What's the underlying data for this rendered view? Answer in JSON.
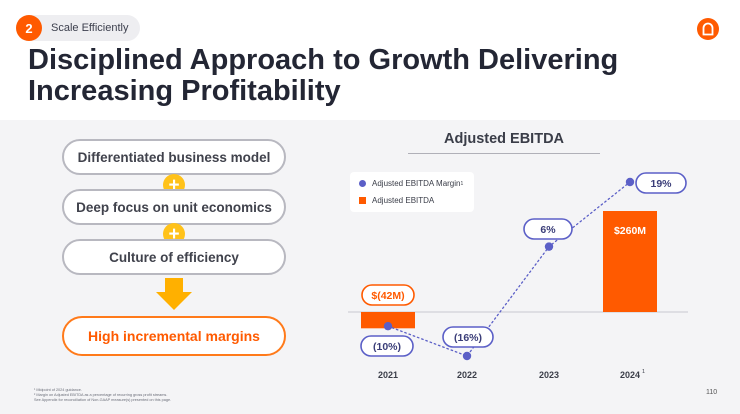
{
  "header": {
    "section_number": "2",
    "section_label": "Scale Efficiently",
    "title": "Disciplined Approach to Growth Delivering Increasing Profitability"
  },
  "flow": {
    "steps": [
      "Differentiated  business model",
      "Deep focus on unit economics",
      "Culture of efficiency"
    ],
    "plus_symbol": "+",
    "result": "High incremental margins"
  },
  "chart_data": {
    "type": "bar",
    "title": "Adjusted EBITDA",
    "categories": [
      "2021",
      "2022",
      "2023",
      "2024"
    ],
    "category_superscripts": [
      "",
      "",
      "",
      "1"
    ],
    "legend_superscripts": [
      "1",
      ""
    ],
    "legend_position": "top-left",
    "series": [
      {
        "name": "Adjusted EBITDA",
        "kind": "bar",
        "unit": "$M",
        "color": "#ff5a00",
        "values": [
          -42,
          null,
          null,
          260
        ],
        "labels": [
          "$(42M)",
          "",
          "",
          "$260M"
        ]
      },
      {
        "name": "Adjusted EBITDA Margin",
        "kind": "line-dotted",
        "unit": "%",
        "color": "#5b5fc7",
        "values": [
          -10,
          -16,
          6,
          19
        ],
        "labels": [
          "(10%)",
          "(16%)",
          "6%",
          "19%"
        ]
      }
    ],
    "bar_range": [
      -59.2,
      260
    ],
    "margin_range": [
      -16,
      19
    ]
  },
  "footnotes": [
    "¹ Midpoint of 2024 guidance.",
    "² Margin on Adjusted EBITDA as a percentage of recurring gross profit streams.",
    "See Appendix for reconciliation of Non-GAAP measure(s) presented on this page."
  ],
  "page_number": "110"
}
